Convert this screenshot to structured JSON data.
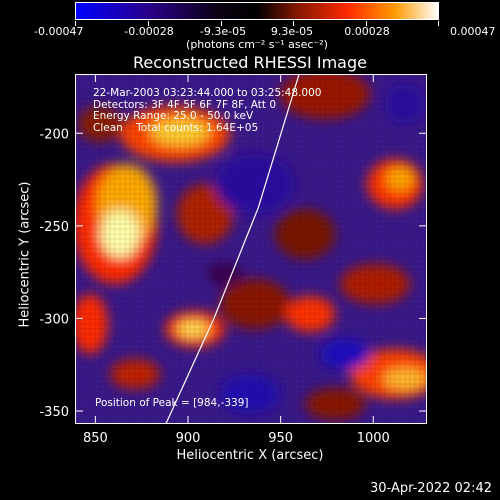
{
  "colorbar": {
    "tick_labels": [
      "-0.00047",
      "-0.00028",
      "-9.3e-05",
      "9.3e-05",
      "0.00028",
      "0.00047"
    ],
    "units": "(photons cm⁻² s⁻¹ asec⁻²)",
    "range": [
      -0.00047,
      0.00047
    ],
    "colors": [
      "#0000ff",
      "#1a0060",
      "#000000",
      "#8a1a00",
      "#ff2200",
      "#ff9a00",
      "#ffffff"
    ]
  },
  "annotation": {
    "line1": "22-Mar-2003 03:23:44.000 to 03:25:48.000",
    "line2": "Detectors: 3F 4F 5F 6F 7F 8F, Att 0",
    "line3": "Energy Range: 25.0 - 50.0 keV",
    "line4": "Clean    Total counts: 1.64E+05",
    "peak": "Position of Peak = [984,-339]"
  },
  "footer": {
    "timestamp": "30-Apr-2022 02:42"
  },
  "chart_data": {
    "type": "heatmap",
    "title": "Reconstructed RHESSI Image",
    "xlabel": "Heliocentric X (arcsec)",
    "ylabel": "Heliocentric Y (arcsec)",
    "xlim": [
      839,
      1029
    ],
    "ylim": [
      -357,
      -168
    ],
    "x_ticks": [
      850,
      900,
      950,
      1000
    ],
    "y_ticks": [
      -350,
      -300,
      -250,
      -200
    ],
    "peak_position": [
      984,
      -339
    ],
    "bright_regions": [
      {
        "x": 856,
        "y": -245,
        "value": 0.00047
      },
      {
        "x": 880,
        "y": -210,
        "value": 0.0004
      },
      {
        "x": 918,
        "y": -302,
        "value": 0.00035
      },
      {
        "x": 1012,
        "y": -202,
        "value": 0.00035
      },
      {
        "x": 1018,
        "y": -338,
        "value": 0.0004
      },
      {
        "x": 958,
        "y": -318,
        "value": 0.0003
      }
    ],
    "limb_arc": [
      [
        888,
        -357
      ],
      [
        914,
        -300
      ],
      [
        938,
        -240
      ],
      [
        960,
        -168
      ]
    ]
  }
}
